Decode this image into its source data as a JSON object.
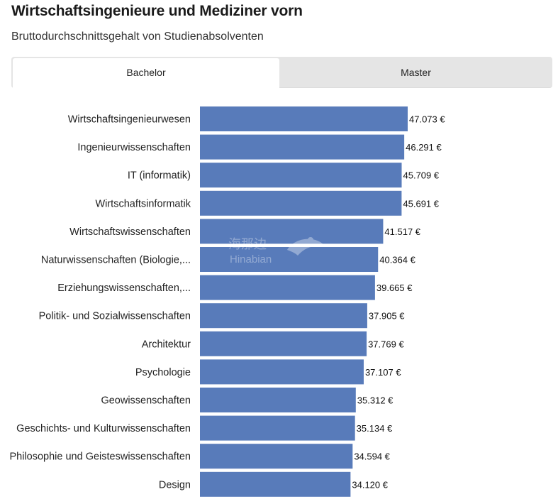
{
  "header": {
    "title": "Wirtschaftsingenieure und Mediziner vorn",
    "subtitle": "Bruttodurchschnittsgehalt von Studienabsolventen"
  },
  "tabs": [
    {
      "label": "Bachelor",
      "active": true
    },
    {
      "label": "Master",
      "active": false
    }
  ],
  "watermark": {
    "cn": "海那边",
    "en": "Hinabian"
  },
  "colors": {
    "bar": "#587bba",
    "tab_bg": "#e5e5e5"
  },
  "chart_data": {
    "type": "bar",
    "orientation": "horizontal",
    "title": "Wirtschaftsingenieure und Mediziner vorn",
    "subtitle": "Bruttodurchschnittsgehalt von Studienabsolventen",
    "categories": [
      "Wirtschaftsingenieurwesen",
      "Ingenieurwissenschaften",
      "IT (informatik)",
      "Wirtschaftsinformatik",
      "Wirtschaftswissenschaften",
      "Naturwissenschaften (Biologie,...",
      "Erziehungswissenschaften,...",
      "Politik- und Sozialwissenschaften",
      "Architektur",
      "Psychologie",
      "Geowissenschaften",
      "Geschichts- und Kulturwissenschaften",
      "Philosophie und Geisteswissenschaften",
      "Design"
    ],
    "values": [
      47073,
      46291,
      45709,
      45691,
      41517,
      40364,
      39665,
      37905,
      37769,
      37107,
      35312,
      35134,
      34594,
      34120
    ],
    "value_labels": [
      "47.073 €",
      "46.291 €",
      "45.709 €",
      "45.691 €",
      "41.517 €",
      "40.364 €",
      "39.665 €",
      "37.905 €",
      "37.769 €",
      "37.107 €",
      "35.312 €",
      "35.134 €",
      "34.594 €",
      "34.120 €"
    ],
    "xlim": [
      0,
      47073
    ],
    "xlabel": "",
    "ylabel": "",
    "grid": false,
    "legend": "none"
  }
}
